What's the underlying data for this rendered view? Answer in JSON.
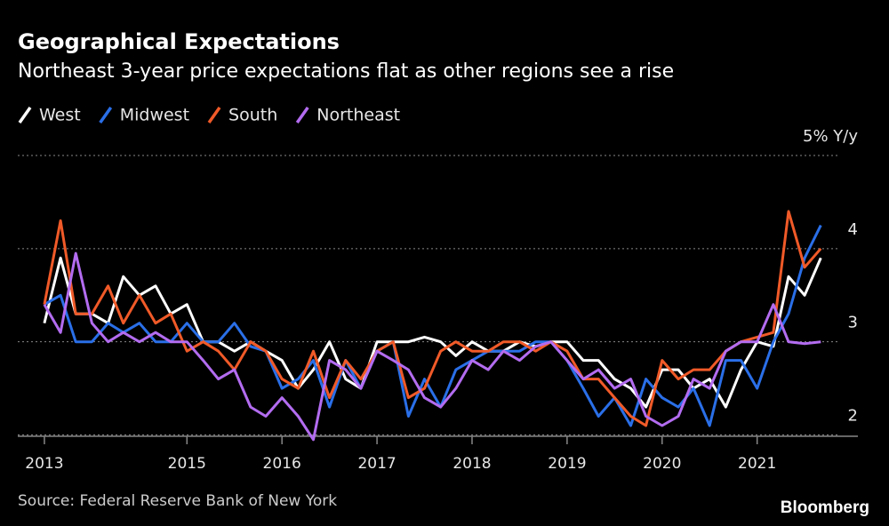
{
  "chart_data": {
    "type": "line",
    "title": "Geographical Expectations",
    "subtitle": "Northeast 3-year price expectations flat as other regions see a rise",
    "source": "Source: Federal Reserve Bank of New York",
    "brand": "Bloomberg",
    "x": [
      2013.5,
      2013.67,
      2013.83,
      2014,
      2014.17,
      2014.33,
      2014.5,
      2014.67,
      2014.83,
      2015,
      2015.17,
      2015.33,
      2015.5,
      2015.67,
      2015.83,
      2016,
      2016.17,
      2016.33,
      2016.5,
      2016.67,
      2016.83,
      2017,
      2017.17,
      2017.33,
      2017.5,
      2017.67,
      2017.83,
      2018,
      2018.17,
      2018.33,
      2018.5,
      2018.67,
      2018.83,
      2019,
      2019.17,
      2019.33,
      2019.5,
      2019.67,
      2019.83,
      2020,
      2020.17,
      2020.33,
      2020.5,
      2020.67,
      2020.83,
      2021,
      2021.17,
      2021.33,
      2021.5,
      2021.67
    ],
    "series": [
      {
        "name": "West",
        "color": "#ffffff",
        "values": [
          3.2,
          3.9,
          3.3,
          3.3,
          3.2,
          3.7,
          3.5,
          3.6,
          3.3,
          3.4,
          3.0,
          3.0,
          2.9,
          3.0,
          2.9,
          2.8,
          2.5,
          2.7,
          3.0,
          2.6,
          2.5,
          3.0,
          3.0,
          3.0,
          3.05,
          3.0,
          2.85,
          3.0,
          2.9,
          2.9,
          3.0,
          2.95,
          3.0,
          3.0,
          2.8,
          2.8,
          2.6,
          2.5,
          2.3,
          2.7,
          2.7,
          2.5,
          2.6,
          2.3,
          2.7,
          3.0,
          2.95,
          3.7,
          3.5,
          3.9
        ]
      },
      {
        "name": "Midwest",
        "color": "#2a6fe8",
        "values": [
          3.4,
          3.5,
          3.0,
          3.0,
          3.2,
          3.1,
          3.2,
          3.0,
          3.0,
          3.2,
          3.0,
          3.0,
          3.2,
          2.95,
          2.9,
          2.5,
          2.6,
          2.8,
          2.3,
          2.8,
          2.5,
          2.9,
          3.0,
          2.2,
          2.6,
          2.3,
          2.7,
          2.8,
          2.9,
          2.9,
          2.9,
          3.0,
          3.0,
          2.8,
          2.5,
          2.2,
          2.4,
          2.1,
          2.6,
          2.4,
          2.3,
          2.5,
          2.1,
          2.8,
          2.8,
          2.5,
          3.0,
          3.3,
          3.9,
          4.25
        ]
      },
      {
        "name": "South",
        "color": "#f05a28",
        "values": [
          3.4,
          4.3,
          3.3,
          3.3,
          3.6,
          3.2,
          3.5,
          3.2,
          3.3,
          2.9,
          3.0,
          2.9,
          2.7,
          3.0,
          2.9,
          2.6,
          2.5,
          2.9,
          2.4,
          2.8,
          2.6,
          2.9,
          3.0,
          2.4,
          2.5,
          2.9,
          3.0,
          2.9,
          2.9,
          3.0,
          3.0,
          2.9,
          3.0,
          2.9,
          2.6,
          2.6,
          2.4,
          2.2,
          2.1,
          2.8,
          2.6,
          2.7,
          2.7,
          2.9,
          3.0,
          3.05,
          3.1,
          4.4,
          3.8,
          4.0
        ]
      },
      {
        "name": "Northeast",
        "color": "#b36cf0",
        "values": [
          3.4,
          3.1,
          3.95,
          3.2,
          3.0,
          3.1,
          3.0,
          3.1,
          3.0,
          3.0,
          2.8,
          2.6,
          2.7,
          2.3,
          2.2,
          2.4,
          2.2,
          1.95,
          2.8,
          2.7,
          2.5,
          2.9,
          2.8,
          2.7,
          2.4,
          2.3,
          2.5,
          2.8,
          2.7,
          2.9,
          2.8,
          2.95,
          3.0,
          2.8,
          2.6,
          2.7,
          2.5,
          2.6,
          2.2,
          2.1,
          2.2,
          2.6,
          2.5,
          2.9,
          3.0,
          3.0,
          3.4,
          3.0,
          2.98,
          3.0
        ]
      }
    ],
    "xlim": [
      2013.22,
      2022.06
    ],
    "xticks": [
      {
        "value": 2013.5,
        "label": "2013"
      },
      2015,
      2016,
      2017,
      2018,
      2019,
      2020,
      2021
    ],
    "ylim": [
      1.9,
      5
    ],
    "yticks": [
      2,
      3,
      4,
      {
        "value": 5,
        "label": "5% Y/y"
      }
    ],
    "grid": true
  }
}
